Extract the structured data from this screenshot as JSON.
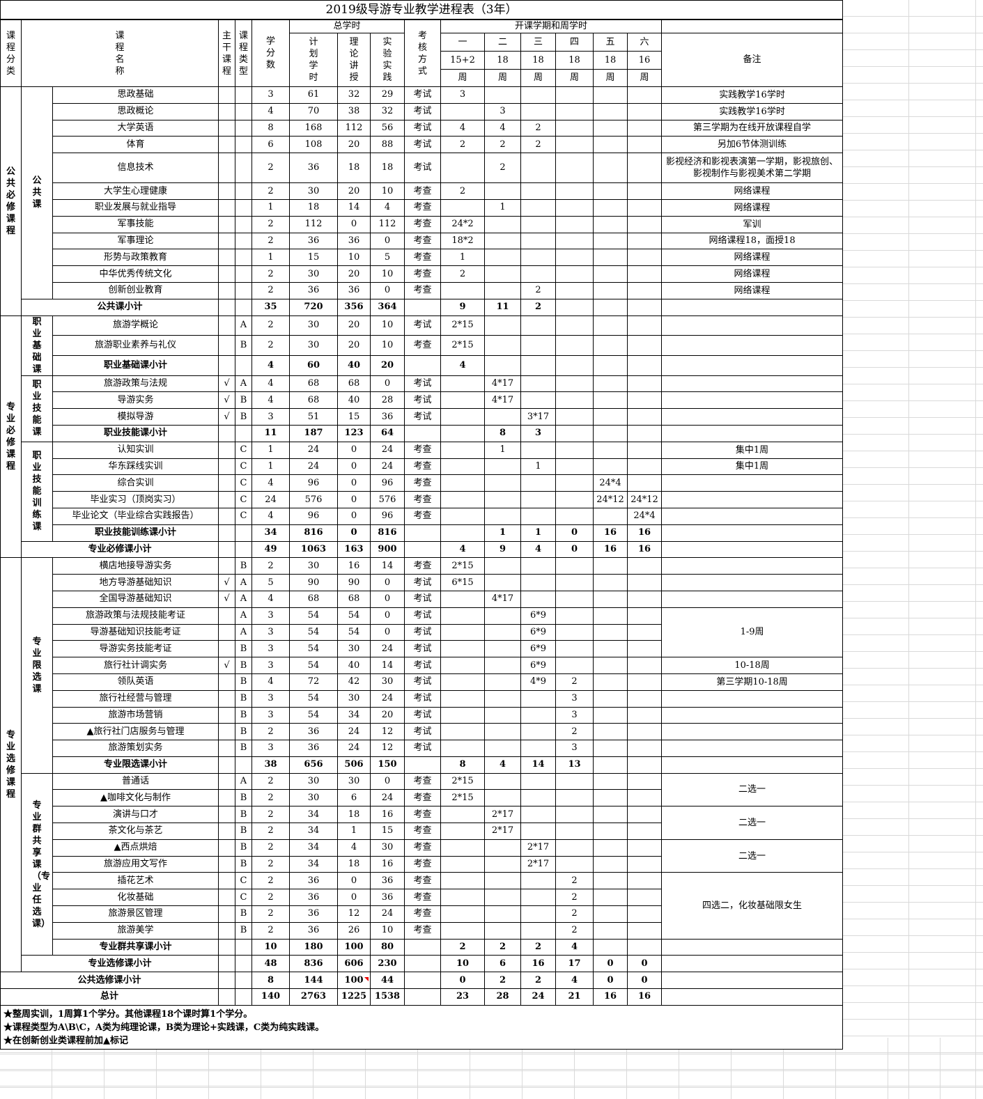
{
  "title": "2019级导游专业教学进程表（3年）",
  "header": {
    "category": "课程分类",
    "name": "课程名称",
    "main": "主干课程",
    "type": "课程类型",
    "credits": "学分数",
    "total_hours": "总学时",
    "plan": "计划学时",
    "theory": "理论讲授",
    "practice": "实验实践",
    "exam": "考核方式",
    "semester_group": "开课学期和周学时",
    "semesters": [
      "一",
      "二",
      "三",
      "四",
      "五",
      "六"
    ],
    "weeks": [
      "15+2",
      "18",
      "18",
      "18",
      "18",
      "16"
    ],
    "week_unit": "周",
    "note": "备注"
  },
  "categories": [
    {
      "label": "公共必修课程",
      "span": 13
    },
    {
      "label": "专业必修课程",
      "span": 14
    },
    {
      "label": "专业选修课程",
      "span": 25
    }
  ],
  "subcategories": [
    {
      "label": "公共课",
      "span": 12
    },
    {
      "label": "职业基础课",
      "span": 3
    },
    {
      "label": "职业技能课",
      "span": 4
    },
    {
      "label": "职业技能训练课",
      "span": 6
    },
    {
      "label": "专业限选课",
      "span": 13
    },
    {
      "label": "专业群共享课（专业任选课）",
      "span": 11
    }
  ],
  "rows": [
    {
      "level": "course",
      "name": "思政基础",
      "main": "",
      "ctype": "",
      "credits": "3",
      "plan": "61",
      "theory": "32",
      "practice": "29",
      "exam": "考试",
      "sem": [
        "3",
        "",
        "",
        "",
        "",
        ""
      ],
      "note": "实践教学16学时"
    },
    {
      "level": "course",
      "name": "思政概论",
      "main": "",
      "ctype": "",
      "credits": "4",
      "plan": "70",
      "theory": "38",
      "practice": "32",
      "exam": "考试",
      "sem": [
        "",
        "3",
        "",
        "",
        "",
        ""
      ],
      "note": "实践教学16学时"
    },
    {
      "level": "course",
      "name": "大学英语",
      "main": "",
      "ctype": "",
      "credits": "8",
      "plan": "168",
      "theory": "112",
      "practice": "56",
      "exam": "考试",
      "sem": [
        "4",
        "4",
        "2",
        "",
        "",
        ""
      ],
      "note": "第三学期为在线开放课程自学"
    },
    {
      "level": "course",
      "name": "体育",
      "main": "",
      "ctype": "",
      "credits": "6",
      "plan": "108",
      "theory": "20",
      "practice": "88",
      "exam": "考试",
      "sem": [
        "2",
        "2",
        "2",
        "",
        "",
        ""
      ],
      "note": "另加6节体测训练"
    },
    {
      "level": "course",
      "tall": true,
      "name": "信息技术",
      "main": "",
      "ctype": "",
      "credits": "2",
      "plan": "36",
      "theory": "18",
      "practice": "18",
      "exam": "考试",
      "sem": [
        "",
        "2",
        "",
        "",
        "",
        ""
      ],
      "note": "影视经济和影视表演第一学期，影视旅创、影视制作与影视美术第二学期"
    },
    {
      "level": "course",
      "name": "大学生心理健康",
      "main": "",
      "ctype": "",
      "credits": "2",
      "plan": "30",
      "theory": "20",
      "practice": "10",
      "exam": "考查",
      "sem": [
        "2",
        "",
        "",
        "",
        "",
        ""
      ],
      "note": "网络课程"
    },
    {
      "level": "course",
      "name": "职业发展与就业指导",
      "main": "",
      "ctype": "",
      "credits": "1",
      "plan": "18",
      "theory": "14",
      "practice": "4",
      "exam": "考查",
      "sem": [
        "",
        "1",
        "",
        "",
        "",
        ""
      ],
      "note": "网络课程"
    },
    {
      "level": "course",
      "name": "军事技能",
      "main": "",
      "ctype": "",
      "credits": "2",
      "plan": "112",
      "theory": "0",
      "practice": "112",
      "exam": "考查",
      "sem": [
        "24*2",
        "",
        "",
        "",
        "",
        ""
      ],
      "note": "军训"
    },
    {
      "level": "course",
      "name": "军事理论",
      "main": "",
      "ctype": "",
      "credits": "2",
      "plan": "36",
      "theory": "36",
      "practice": "0",
      "exam": "考查",
      "sem": [
        "18*2",
        "",
        "",
        "",
        "",
        ""
      ],
      "note": "网络课程18，面授18"
    },
    {
      "level": "course",
      "name": "形势与政策教育",
      "main": "",
      "ctype": "",
      "credits": "1",
      "plan": "15",
      "theory": "10",
      "practice": "5",
      "exam": "考查",
      "sem": [
        "1",
        "",
        "",
        "",
        "",
        ""
      ],
      "note": "网络课程"
    },
    {
      "level": "course",
      "name": "中华优秀传统文化",
      "main": "",
      "ctype": "",
      "credits": "2",
      "plan": "30",
      "theory": "20",
      "practice": "10",
      "exam": "考查",
      "sem": [
        "2",
        "",
        "",
        "",
        "",
        ""
      ],
      "note": "网络课程"
    },
    {
      "level": "course",
      "name": "创新创业教育",
      "main": "",
      "ctype": "",
      "credits": "2",
      "plan": "36",
      "theory": "36",
      "practice": "0",
      "exam": "考查",
      "sem": [
        "",
        "",
        "2",
        "",
        "",
        ""
      ],
      "note": "网络课程"
    },
    {
      "level": "category",
      "name": "公共课小计",
      "main": "",
      "ctype": "",
      "credits": "35",
      "plan": "720",
      "theory": "356",
      "practice": "364",
      "exam": "",
      "sem": [
        "9",
        "11",
        "2",
        "",
        "",
        ""
      ],
      "note": ""
    },
    {
      "level": "course",
      "name": "旅游学概论",
      "main": "",
      "ctype": "A",
      "credits": "2",
      "plan": "30",
      "theory": "20",
      "practice": "10",
      "exam": "考试",
      "sem": [
        "2*15",
        "",
        "",
        "",
        "",
        ""
      ],
      "note": ""
    },
    {
      "level": "course",
      "name": "旅游职业素养与礼仪",
      "main": "",
      "ctype": "B",
      "credits": "2",
      "plan": "30",
      "theory": "20",
      "practice": "10",
      "exam": "考查",
      "sem": [
        "2*15",
        "",
        "",
        "",
        "",
        ""
      ],
      "note": ""
    },
    {
      "level": "group",
      "name": "职业基础课小计",
      "main": "",
      "ctype": "",
      "credits": "4",
      "plan": "60",
      "theory": "40",
      "practice": "20",
      "exam": "",
      "sem": [
        "4",
        "",
        "",
        "",
        "",
        ""
      ],
      "note": ""
    },
    {
      "level": "course",
      "name": "旅游政策与法规",
      "main": "√",
      "ctype": "A",
      "credits": "4",
      "plan": "68",
      "theory": "68",
      "practice": "0",
      "exam": "考试",
      "sem": [
        "",
        "4*17",
        "",
        "",
        "",
        ""
      ],
      "note": ""
    },
    {
      "level": "course",
      "name": "导游实务",
      "main": "√",
      "ctype": "B",
      "credits": "4",
      "plan": "68",
      "theory": "40",
      "practice": "28",
      "exam": "考试",
      "sem": [
        "",
        "4*17",
        "",
        "",
        "",
        ""
      ],
      "note": ""
    },
    {
      "level": "course",
      "name": "模拟导游",
      "main": "√",
      "ctype": "B",
      "credits": "3",
      "plan": "51",
      "theory": "15",
      "practice": "36",
      "exam": "考试",
      "sem": [
        "",
        "",
        "3*17",
        "",
        "",
        ""
      ],
      "note": ""
    },
    {
      "level": "group",
      "name": "职业技能课小计",
      "main": "",
      "ctype": "",
      "credits": "11",
      "plan": "187",
      "theory": "123",
      "practice": "64",
      "exam": "",
      "sem": [
        "",
        "8",
        "3",
        "",
        "",
        ""
      ],
      "note": ""
    },
    {
      "level": "course",
      "name": "认知实训",
      "main": "",
      "ctype": "C",
      "credits": "1",
      "plan": "24",
      "theory": "0",
      "practice": "24",
      "exam": "考查",
      "sem": [
        "",
        "1",
        "",
        "",
        "",
        ""
      ],
      "note": "集中1周"
    },
    {
      "level": "course",
      "name": "华东踩线实训",
      "main": "",
      "ctype": "C",
      "credits": "1",
      "plan": "24",
      "theory": "0",
      "practice": "24",
      "exam": "考查",
      "sem": [
        "",
        "",
        "1",
        "",
        "",
        ""
      ],
      "note": "集中1周"
    },
    {
      "level": "course",
      "name": "综合实训",
      "main": "",
      "ctype": "C",
      "credits": "4",
      "plan": "96",
      "theory": "0",
      "practice": "96",
      "exam": "考查",
      "sem": [
        "",
        "",
        "",
        "",
        "24*4",
        ""
      ],
      "note": ""
    },
    {
      "level": "course",
      "name": "毕业实习（顶岗实习）",
      "main": "",
      "ctype": "C",
      "credits": "24",
      "plan": "576",
      "theory": "0",
      "practice": "576",
      "exam": "考查",
      "sem": [
        "",
        "",
        "",
        "",
        "24*12",
        "24*12"
      ],
      "note": ""
    },
    {
      "level": "course",
      "name": "毕业论文（毕业综合实践报告）",
      "main": "",
      "ctype": "C",
      "credits": "4",
      "plan": "96",
      "theory": "0",
      "practice": "96",
      "exam": "考查",
      "sem": [
        "",
        "",
        "",
        "",
        "",
        "24*4"
      ],
      "note": ""
    },
    {
      "level": "group",
      "name": "职业技能训练课小计",
      "main": "",
      "ctype": "",
      "credits": "34",
      "plan": "816",
      "theory": "0",
      "practice": "816",
      "exam": "",
      "sem": [
        "",
        "1",
        "1",
        "0",
        "16",
        "16"
      ],
      "note": ""
    },
    {
      "level": "category",
      "name": "专业必修课小计",
      "main": "",
      "ctype": "",
      "credits": "49",
      "plan": "1063",
      "theory": "163",
      "practice": "900",
      "exam": "",
      "sem": [
        "4",
        "9",
        "4",
        "0",
        "16",
        "16"
      ],
      "note": ""
    },
    {
      "level": "course",
      "name": "横店地接导游实务",
      "main": "",
      "ctype": "B",
      "credits": "2",
      "plan": "30",
      "theory": "16",
      "practice": "14",
      "exam": "考查",
      "sem": [
        "2*15",
        "",
        "",
        "",
        "",
        ""
      ],
      "note": ""
    },
    {
      "level": "course",
      "name": "地方导游基础知识",
      "main": "√",
      "ctype": "A",
      "credits": "5",
      "plan": "90",
      "theory": "90",
      "practice": "0",
      "exam": "考试",
      "sem": [
        "6*15",
        "",
        "",
        "",
        "",
        ""
      ],
      "note": ""
    },
    {
      "level": "course",
      "name": "全国导游基础知识",
      "main": "√",
      "ctype": "A",
      "credits": "4",
      "plan": "68",
      "theory": "68",
      "practice": "0",
      "exam": "考试",
      "sem": [
        "",
        "4*17",
        "",
        "",
        "",
        ""
      ],
      "note": ""
    },
    {
      "level": "course",
      "name": "旅游政策与法规技能考证",
      "main": "",
      "ctype": "A",
      "credits": "3",
      "plan": "54",
      "theory": "54",
      "practice": "0",
      "exam": "考试",
      "sem": [
        "",
        "",
        "6*9",
        "",
        "",
        ""
      ],
      "note": "1-9周",
      "note_span": 3
    },
    {
      "level": "course",
      "name": "导游基础知识技能考证",
      "main": "",
      "ctype": "A",
      "credits": "3",
      "plan": "54",
      "theory": "54",
      "practice": "0",
      "exam": "考试",
      "sem": [
        "",
        "",
        "6*9",
        "",
        "",
        ""
      ]
    },
    {
      "level": "course",
      "name": "导游实务技能考证",
      "main": "",
      "ctype": "B",
      "credits": "3",
      "plan": "54",
      "theory": "30",
      "practice": "24",
      "exam": "考试",
      "sem": [
        "",
        "",
        "6*9",
        "",
        "",
        ""
      ]
    },
    {
      "level": "course",
      "name": "旅行社计调实务",
      "main": "√",
      "ctype": "B",
      "credits": "3",
      "plan": "54",
      "theory": "40",
      "practice": "14",
      "exam": "考试",
      "sem": [
        "",
        "",
        "6*9",
        "",
        "",
        ""
      ],
      "note": "10-18周"
    },
    {
      "level": "course",
      "name": "领队英语",
      "main": "",
      "ctype": "B",
      "credits": "4",
      "plan": "72",
      "theory": "42",
      "practice": "30",
      "exam": "考试",
      "sem": [
        "",
        "",
        "4*9",
        "2",
        "",
        ""
      ],
      "note": "第三学期10-18周"
    },
    {
      "level": "course",
      "name": "旅行社经营与管理",
      "main": "",
      "ctype": "B",
      "credits": "3",
      "plan": "54",
      "theory": "30",
      "practice": "24",
      "exam": "考试",
      "sem": [
        "",
        "",
        "",
        "3",
        "",
        ""
      ],
      "note": ""
    },
    {
      "level": "course",
      "name": "旅游市场营销",
      "main": "",
      "ctype": "B",
      "credits": "3",
      "plan": "54",
      "theory": "34",
      "practice": "20",
      "exam": "考试",
      "sem": [
        "",
        "",
        "",
        "3",
        "",
        ""
      ],
      "note": ""
    },
    {
      "level": "course",
      "name": "▲旅行社门店服务与管理",
      "main": "",
      "ctype": "B",
      "credits": "2",
      "plan": "36",
      "theory": "24",
      "practice": "12",
      "exam": "考试",
      "sem": [
        "",
        "",
        "",
        "2",
        "",
        ""
      ],
      "note": ""
    },
    {
      "level": "course",
      "name": "旅游策划实务",
      "main": "",
      "ctype": "B",
      "credits": "3",
      "plan": "36",
      "theory": "24",
      "practice": "12",
      "exam": "考试",
      "sem": [
        "",
        "",
        "",
        "3",
        "",
        ""
      ],
      "note": ""
    },
    {
      "level": "group",
      "name": "专业限选课小计",
      "main": "",
      "ctype": "",
      "credits": "38",
      "plan": "656",
      "theory": "506",
      "practice": "150",
      "exam": "",
      "sem": [
        "8",
        "4",
        "14",
        "13",
        "",
        ""
      ],
      "note": ""
    },
    {
      "level": "course",
      "name": "普通话",
      "main": "",
      "ctype": "A",
      "credits": "2",
      "plan": "30",
      "theory": "30",
      "practice": "0",
      "exam": "考查",
      "sem": [
        "2*15",
        "",
        "",
        "",
        "",
        ""
      ],
      "note": "二选一",
      "note_span": 2
    },
    {
      "level": "course",
      "name": "▲咖啡文化与制作",
      "main": "",
      "ctype": "B",
      "credits": "2",
      "plan": "30",
      "theory": "6",
      "practice": "24",
      "exam": "考查",
      "sem": [
        "2*15",
        "",
        "",
        "",
        "",
        ""
      ]
    },
    {
      "level": "course",
      "name": "演讲与口才",
      "main": "",
      "ctype": "B",
      "credits": "2",
      "plan": "34",
      "theory": "18",
      "practice": "16",
      "exam": "考查",
      "sem": [
        "",
        "2*17",
        "",
        "",
        "",
        ""
      ],
      "note": "二选一",
      "note_span": 2
    },
    {
      "level": "course",
      "name": "茶文化与茶艺",
      "main": "",
      "ctype": "B",
      "credits": "2",
      "plan": "34",
      "theory": "1",
      "practice": "15",
      "exam": "考查",
      "sem": [
        "",
        "2*17",
        "",
        "",
        "",
        ""
      ]
    },
    {
      "level": "course",
      "name": "▲西点烘焙",
      "main": "",
      "ctype": "B",
      "credits": "2",
      "plan": "34",
      "theory": "4",
      "practice": "30",
      "exam": "考查",
      "sem": [
        "",
        "",
        "2*17",
        "",
        "",
        ""
      ],
      "note": "二选一",
      "note_span": 2
    },
    {
      "level": "course",
      "name": "旅游应用文写作",
      "main": "",
      "ctype": "B",
      "credits": "2",
      "plan": "34",
      "theory": "18",
      "practice": "16",
      "exam": "考查",
      "sem": [
        "",
        "",
        "2*17",
        "",
        "",
        ""
      ]
    },
    {
      "level": "course",
      "name": "插花艺术",
      "main": "",
      "ctype": "C",
      "credits": "2",
      "plan": "36",
      "theory": "0",
      "practice": "36",
      "exam": "考查",
      "sem": [
        "",
        "",
        "",
        "2",
        "",
        ""
      ],
      "note": "四选二，化妆基础限女生",
      "note_span": 4
    },
    {
      "level": "course",
      "name": "化妆基础",
      "main": "",
      "ctype": "C",
      "credits": "2",
      "plan": "36",
      "theory": "0",
      "practice": "36",
      "exam": "考查",
      "sem": [
        "",
        "",
        "",
        "2",
        "",
        ""
      ]
    },
    {
      "level": "course",
      "name": "旅游景区管理",
      "main": "",
      "ctype": "B",
      "credits": "2",
      "plan": "36",
      "theory": "12",
      "practice": "24",
      "exam": "考查",
      "sem": [
        "",
        "",
        "",
        "2",
        "",
        ""
      ]
    },
    {
      "level": "course",
      "name": "旅游美学",
      "main": "",
      "ctype": "B",
      "credits": "2",
      "plan": "36",
      "theory": "26",
      "practice": "10",
      "exam": "考查",
      "sem": [
        "",
        "",
        "",
        "2",
        "",
        ""
      ]
    },
    {
      "level": "group",
      "name": "专业群共享课小计",
      "main": "",
      "ctype": "",
      "credits": "10",
      "plan": "180",
      "theory": "100",
      "practice": "80",
      "exam": "",
      "sem": [
        "2",
        "2",
        "2",
        "4",
        "",
        ""
      ],
      "note": ""
    },
    {
      "level": "category",
      "name": "专业选修课小计",
      "main": "",
      "ctype": "",
      "credits": "48",
      "plan": "836",
      "theory": "606",
      "practice": "230",
      "exam": "",
      "sem": [
        "10",
        "6",
        "16",
        "17",
        "0",
        "0"
      ],
      "note": ""
    },
    {
      "level": "total",
      "name": "公共选修课小计",
      "main": "",
      "ctype": "",
      "credits": "8",
      "plan": "144",
      "theory": "100",
      "practice": "44",
      "exam": "",
      "sem": [
        "0",
        "2",
        "2",
        "4",
        "0",
        "0"
      ],
      "note": ""
    },
    {
      "level": "total",
      "name": "总计",
      "main": "",
      "ctype": "",
      "credits": "140",
      "plan": "2763",
      "theory": "1225",
      "practice": "1538",
      "exam": "",
      "sem": [
        "23",
        "28",
        "24",
        "21",
        "16",
        "16"
      ],
      "note": ""
    }
  ],
  "footnotes": [
    "★整周实训，1周算1个学分。其他课程18个课时算1个学分。",
    "★课程类型为A\\B\\C，A类为纯理论课，B类为理论+实践课，C类为纯实践课。",
    "★在创新创业类课程前加▲标记"
  ],
  "colors": {
    "grid": "#d9d9d9",
    "border": "#000000",
    "comment_marker": "#ee0000"
  }
}
